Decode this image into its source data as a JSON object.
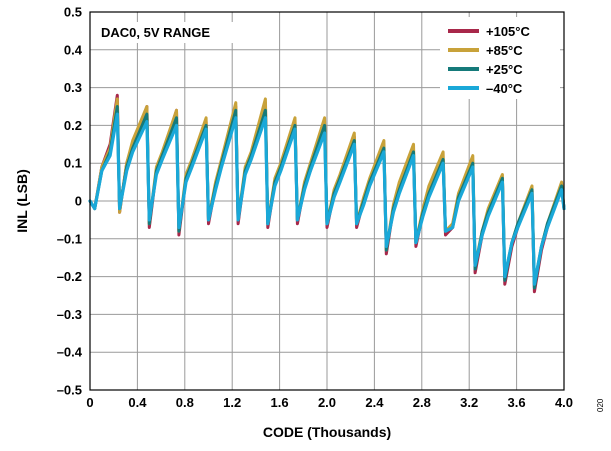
{
  "chart_data": {
    "type": "line",
    "title": "",
    "annotation": "DAC0, 5V RANGE",
    "xlabel": "CODE (Thousands)",
    "ylabel": "INL (LSB)",
    "xlim": [
      0,
      4.0
    ],
    "ylim": [
      -0.5,
      0.5
    ],
    "x_ticks": [
      "0",
      "0.4",
      "0.8",
      "1.2",
      "1.6",
      "2.0",
      "2.4",
      "2.8",
      "3.2",
      "3.6",
      "4.0"
    ],
    "y_ticks": [
      "0.5",
      "0.4",
      "0.3",
      "0.2",
      "0.1",
      "0",
      "–0.1",
      "–0.2",
      "–0.3",
      "–0.4",
      "–0.5"
    ],
    "grid": true,
    "legend_position": "top-right",
    "figure_id": "020",
    "x": [
      0.0,
      0.04,
      0.1,
      0.17,
      0.23,
      0.25,
      0.31,
      0.36,
      0.48,
      0.5,
      0.56,
      0.61,
      0.73,
      0.75,
      0.81,
      0.86,
      0.98,
      1.0,
      1.06,
      1.11,
      1.23,
      1.25,
      1.31,
      1.36,
      1.48,
      1.5,
      1.56,
      1.61,
      1.73,
      1.75,
      1.81,
      1.86,
      1.98,
      2.0,
      2.06,
      2.11,
      2.23,
      2.25,
      2.31,
      2.36,
      2.48,
      2.5,
      2.56,
      2.61,
      2.73,
      2.75,
      2.81,
      2.86,
      2.98,
      3.0,
      3.06,
      3.11,
      3.23,
      3.25,
      3.31,
      3.36,
      3.48,
      3.5,
      3.56,
      3.61,
      3.73,
      3.75,
      3.81,
      3.86,
      3.98,
      4.0
    ],
    "series": [
      {
        "name": "+105°C",
        "color": "#a8284a",
        "values": [
          0.0,
          -0.02,
          0.09,
          0.15,
          0.28,
          -0.03,
          0.1,
          0.15,
          0.25,
          -0.07,
          0.08,
          0.12,
          0.24,
          -0.09,
          0.06,
          0.1,
          0.21,
          -0.06,
          0.04,
          0.1,
          0.25,
          -0.06,
          0.08,
          0.12,
          0.26,
          -0.07,
          0.05,
          0.09,
          0.21,
          -0.06,
          0.04,
          0.08,
          0.2,
          -0.07,
          0.02,
          0.06,
          0.17,
          -0.07,
          0.0,
          0.05,
          0.15,
          -0.14,
          -0.02,
          0.03,
          0.13,
          -0.12,
          -0.03,
          0.02,
          0.11,
          -0.09,
          -0.07,
          0.01,
          0.1,
          -0.19,
          -0.09,
          -0.03,
          0.06,
          -0.22,
          -0.12,
          -0.07,
          0.03,
          -0.24,
          -0.13,
          -0.07,
          0.04,
          -0.02
        ]
      },
      {
        "name": "+85°C",
        "color": "#c8a23a",
        "values": [
          0.0,
          -0.02,
          0.09,
          0.14,
          0.27,
          -0.03,
          0.1,
          0.16,
          0.25,
          -0.06,
          0.09,
          0.13,
          0.24,
          -0.08,
          0.07,
          0.11,
          0.22,
          -0.05,
          0.05,
          0.11,
          0.26,
          -0.05,
          0.09,
          0.13,
          0.27,
          -0.06,
          0.06,
          0.1,
          0.22,
          -0.05,
          0.05,
          0.1,
          0.22,
          -0.06,
          0.03,
          0.07,
          0.18,
          -0.06,
          0.01,
          0.06,
          0.16,
          -0.13,
          -0.01,
          0.05,
          0.15,
          -0.11,
          -0.02,
          0.04,
          0.13,
          -0.08,
          -0.06,
          0.02,
          0.12,
          -0.17,
          -0.08,
          -0.02,
          0.07,
          -0.2,
          -0.11,
          -0.06,
          0.04,
          -0.22,
          -0.12,
          -0.06,
          0.05,
          -0.02
        ]
      },
      {
        "name": "+25°C",
        "color": "#157a7a",
        "values": [
          0.0,
          -0.02,
          0.08,
          0.13,
          0.25,
          -0.02,
          0.09,
          0.14,
          0.23,
          -0.06,
          0.08,
          0.12,
          0.22,
          -0.08,
          0.06,
          0.1,
          0.2,
          -0.05,
          0.04,
          0.1,
          0.24,
          -0.05,
          0.08,
          0.12,
          0.24,
          -0.06,
          0.05,
          0.09,
          0.2,
          -0.05,
          0.04,
          0.09,
          0.2,
          -0.06,
          0.02,
          0.06,
          0.16,
          -0.06,
          0.0,
          0.05,
          0.14,
          -0.13,
          -0.02,
          0.03,
          0.13,
          -0.11,
          -0.03,
          0.02,
          0.11,
          -0.08,
          -0.07,
          0.01,
          0.1,
          -0.18,
          -0.08,
          -0.03,
          0.06,
          -0.21,
          -0.11,
          -0.06,
          0.03,
          -0.23,
          -0.12,
          -0.06,
          0.04,
          -0.02
        ]
      },
      {
        "name": "–40°C",
        "color": "#1aa8d8",
        "values": [
          0.0,
          -0.02,
          0.08,
          0.12,
          0.23,
          -0.02,
          0.08,
          0.13,
          0.21,
          -0.05,
          0.07,
          0.11,
          0.2,
          -0.07,
          0.05,
          0.09,
          0.19,
          -0.05,
          0.03,
          0.09,
          0.22,
          -0.05,
          0.07,
          0.11,
          0.22,
          -0.06,
          0.04,
          0.08,
          0.19,
          -0.05,
          0.03,
          0.08,
          0.18,
          -0.06,
          0.01,
          0.05,
          0.15,
          -0.06,
          -0.01,
          0.04,
          0.13,
          -0.12,
          -0.03,
          0.02,
          0.12,
          -0.11,
          -0.04,
          0.01,
          0.1,
          -0.08,
          -0.07,
          0.0,
          0.09,
          -0.17,
          -0.09,
          -0.04,
          0.05,
          -0.2,
          -0.11,
          -0.07,
          0.02,
          -0.22,
          -0.12,
          -0.07,
          0.03,
          -0.02
        ]
      }
    ]
  }
}
